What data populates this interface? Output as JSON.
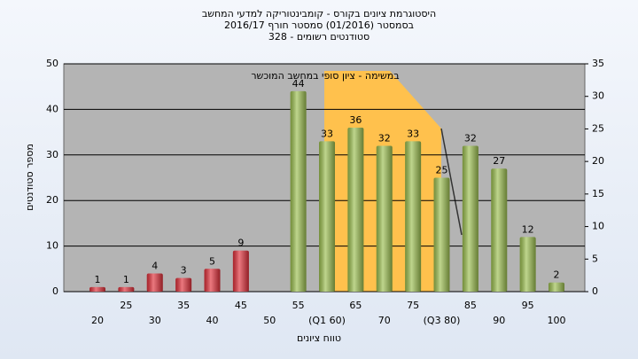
{
  "chart_data": {
    "type": "bar",
    "title": "היסטוגרמת ציונים בקורס - קומבינטוריקה למדעי המחשב",
    "subtitle": [
      "בסמסטר (01/2016)  סמסטר חורף 2016/17",
      "סטודנטים רשומים - 328"
    ],
    "annotation": "במשימה - ציון סופי במחשב המוכשר",
    "x_label": "טווח ציונים",
    "y_label": "מספר סטודנטים",
    "categories": [
      "20",
      "25",
      "30",
      "35",
      "40",
      "45",
      "50",
      "55",
      "(Q1 60)",
      "65",
      "70",
      "75",
      "(Q3 80)",
      "85",
      "90",
      "95",
      "100"
    ],
    "values": [
      1,
      1,
      4,
      3,
      5,
      9,
      null,
      44,
      33,
      36,
      32,
      33,
      25,
      32,
      27,
      12,
      2
    ],
    "colors": [
      "#e0303a",
      "#e0303a",
      "#e0303a",
      "#e0303a",
      "#e0303a",
      "#e0303a",
      "#e0303a",
      "#9cbf50",
      "#9cbf50",
      "#9cbf50",
      "#9cbf50",
      "#9cbf50",
      "#9cbf50",
      "#9cbf50",
      "#9cbf50",
      "#9cbf50",
      "#9cbf50"
    ],
    "ylim": [
      0,
      50
    ],
    "yticks": [
      0,
      10,
      20,
      30,
      40,
      50
    ],
    "y2lim": [
      0,
      35
    ],
    "y2ticks": [
      0,
      5,
      10,
      15,
      20,
      25,
      30,
      35
    ],
    "grid": true
  }
}
